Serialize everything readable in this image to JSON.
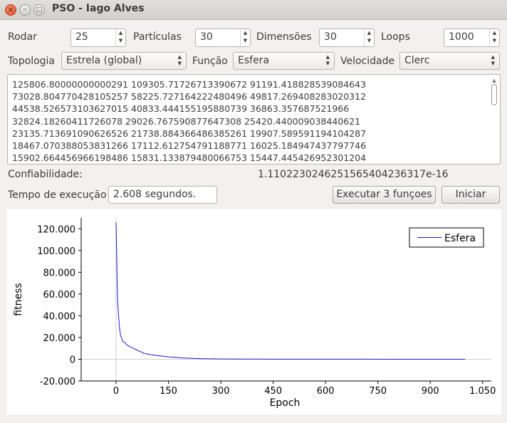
{
  "window": {
    "title": "PSO - Iago Alves"
  },
  "controls": {
    "rodar_label": "Rodar",
    "rodar_value": "25",
    "particulas_label": "Partículas",
    "particulas_value": "30",
    "dimensoes_label": "Dimensões",
    "dimensoes_value": "30",
    "loops_label": "Loops",
    "loops_value": "1000",
    "topologia_label": "Topologia",
    "topologia_value": "Estrela (global)",
    "funcao_label": "Função",
    "funcao_value": "Esfera",
    "velocidade_label": "Velocidade",
    "velocidade_value": "Clerc"
  },
  "output": {
    "lines": [
      "125806.80000000000291 109305.71726713390672 91191.418828539084643",
      "73028.804770428105257 58225.727164222480496 49817.269408283020312",
      "44538.526573103627015 40833.444155195880739 36863.357687521966",
      "32824.18260411726078 29026.767590877647308 25420.440009038440621",
      "23135.713691090626526 21738.884366486385261 19907.589591194104287",
      "18467.070388053831266 17112.612754791188771 16025.184947437797746",
      "15902.664456966198486 15831.133879480066753 15447.445426952301204"
    ]
  },
  "status": {
    "confiabilidade_label": "Confiabilidade:",
    "confiabilidade_value": "1.1102230246251565404236317e-16",
    "tempo_label": "Tempo de execução",
    "tempo_value": "2.608 segundos."
  },
  "buttons": {
    "executar": "Executar 3 funçoes",
    "iniciar": "Iniciar"
  },
  "chart_data": {
    "type": "line",
    "xlabel": "Epoch",
    "ylabel": "fitness",
    "xlim": [
      -100,
      1075
    ],
    "ylim": [
      -20000,
      130000
    ],
    "xticks": [
      0,
      150,
      300,
      450,
      600,
      750,
      900,
      1050
    ],
    "xtick_labels": [
      "0",
      "150",
      "300",
      "450",
      "600",
      "750",
      "900",
      "1.050"
    ],
    "yticks": [
      -20000,
      0,
      20000,
      40000,
      60000,
      80000,
      100000,
      120000
    ],
    "ytick_labels": [
      "-20.000",
      "0",
      "20.000",
      "40.000",
      "60.000",
      "80.000",
      "100.000",
      "120.000"
    ],
    "legend_position": "top-right",
    "series": [
      {
        "name": "Esfera",
        "color": "#1a1acc",
        "x": [
          0,
          1,
          2,
          3,
          4,
          5,
          6,
          8,
          10,
          12,
          15,
          20,
          25,
          30,
          40,
          50,
          60,
          70,
          80,
          90,
          100,
          120,
          150,
          180,
          200,
          250,
          300,
          400,
          500,
          600,
          700,
          800,
          900,
          1000
        ],
        "y": [
          125806,
          109305,
          91191,
          73028,
          58225,
          49817,
          44538,
          36863,
          29026,
          23135,
          19907,
          16025,
          15447,
          13500,
          11500,
          10000,
          8500,
          7000,
          5500,
          4700,
          4200,
          3300,
          2200,
          1400,
          1000,
          500,
          250,
          100,
          50,
          30,
          20,
          10,
          5,
          3
        ]
      }
    ]
  }
}
